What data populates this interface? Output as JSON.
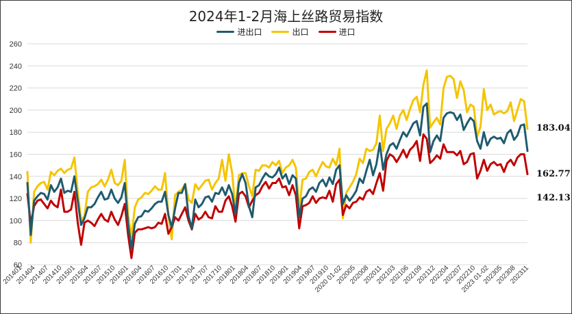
{
  "colors": {
    "jinchu": "#1f5b6e",
    "chu": "#f5c400",
    "jin": "#c00000"
  },
  "chart_data": {
    "type": "line",
    "title": "2024年1-2月海上丝路贸易指数",
    "ylim": [
      60,
      260
    ],
    "yticks": [
      60,
      80,
      100,
      120,
      140,
      160,
      180,
      200,
      220,
      240,
      260
    ],
    "grid": true,
    "legend_position": "top",
    "x_tick_labels": [
      "201401",
      "201404",
      "201407",
      "201410",
      "201501",
      "201504",
      "201507",
      "201510",
      "201601",
      "201604",
      "201607",
      "201610",
      "201701",
      "201704",
      "201707",
      "201710",
      "201801",
      "201804",
      "201807",
      "201810",
      "201901",
      "201904",
      "201907",
      "201910",
      "2020 01-02",
      "202005",
      "202008",
      "202011",
      "202103",
      "202106",
      "202109",
      "202112",
      "202204",
      "202207",
      "202210",
      "2023 01-02",
      "202305",
      "202308",
      "202311"
    ],
    "end_labels": [
      "183.04",
      "162.77",
      "142.13"
    ],
    "series": [
      {
        "name": "进出口",
        "values": [
          134,
          87,
          118,
          122,
          125,
          124,
          119,
          132,
          126,
          130,
          138,
          125,
          127,
          126,
          140,
          118,
          96,
          102,
          112,
          112,
          115,
          121,
          126,
          119,
          120,
          128,
          120,
          116,
          121,
          134,
          97,
          75,
          97,
          103,
          104,
          109,
          108,
          111,
          115,
          117,
          117,
          126,
          105,
          94,
          111,
          125,
          125,
          133,
          104,
          93,
          119,
          112,
          115,
          121,
          122,
          117,
          125,
          124,
          130,
          123,
          132,
          124,
          106,
          134,
          142,
          134,
          113,
          103,
          130,
          132,
          138,
          143,
          140,
          139,
          142,
          148,
          138,
          142,
          133,
          141,
          138,
          103,
          120,
          122,
          128,
          130,
          126,
          134,
          137,
          131,
          139,
          133,
          146,
          150,
          115,
          123,
          118,
          122,
          127,
          138,
          134,
          145,
          155,
          141,
          151,
          170,
          146,
          160,
          168,
          170,
          165,
          173,
          180,
          176,
          182,
          188,
          190,
          177,
          203,
          206,
          162,
          172,
          177,
          172,
          193,
          197,
          198,
          197,
          191,
          196,
          182,
          188,
          193,
          190,
          172,
          165,
          180,
          168,
          174,
          176,
          174,
          175,
          170,
          179,
          182,
          173,
          177,
          186,
          187,
          163
        ],
        "endpoint_label": "162.77"
      },
      {
        "name": "出口",
        "values": [
          144,
          80,
          126,
          131,
          134,
          135,
          128,
          144,
          141,
          145,
          147,
          143,
          146,
          147,
          157,
          126,
          100,
          104,
          126,
          130,
          131,
          133,
          137,
          131,
          137,
          146,
          134,
          132,
          136,
          155,
          105,
          85,
          112,
          119,
          121,
          125,
          124,
          127,
          131,
          128,
          128,
          143,
          105,
          83,
          123,
          126,
          128,
          133,
          119,
          116,
          133,
          128,
          132,
          136,
          137,
          128,
          134,
          138,
          155,
          136,
          160,
          143,
          110,
          141,
          143,
          143,
          131,
          122,
          146,
          145,
          150,
          150,
          148,
          153,
          150,
          154,
          143,
          148,
          150,
          155,
          148,
          110,
          137,
          138,
          144,
          146,
          140,
          147,
          153,
          149,
          148,
          156,
          150,
          165,
          102,
          125,
          130,
          135,
          142,
          156,
          152,
          165,
          163,
          164,
          170,
          195,
          163,
          183,
          188,
          195,
          183,
          195,
          200,
          191,
          201,
          209,
          212,
          198,
          223,
          236,
          184,
          189,
          193,
          187,
          220,
          230,
          231,
          228,
          211,
          226,
          218,
          198,
          205,
          203,
          176,
          185,
          219,
          200,
          205,
          196,
          198,
          199,
          197,
          199,
          207,
          190,
          200,
          210,
          208,
          183
        ],
        "endpoint_label": "183.04"
      },
      {
        "name": "进口",
        "values": [
          124,
          97,
          113,
          118,
          119,
          115,
          111,
          118,
          114,
          112,
          128,
          108,
          108,
          110,
          126,
          98,
          78,
          98,
          100,
          98,
          95,
          101,
          106,
          101,
          99,
          108,
          101,
          96,
          104,
          115,
          87,
          66,
          89,
          92,
          92,
          93,
          94,
          93,
          94,
          98,
          97,
          106,
          88,
          94,
          103,
          100,
          106,
          112,
          100,
          92,
          106,
          101,
          103,
          108,
          103,
          102,
          113,
          108,
          108,
          118,
          122,
          113,
          99,
          124,
          126,
          122,
          112,
          118,
          123,
          125,
          131,
          135,
          129,
          134,
          134,
          138,
          130,
          131,
          123,
          132,
          123,
          93,
          113,
          114,
          116,
          122,
          116,
          120,
          121,
          120,
          127,
          117,
          133,
          137,
          105,
          114,
          111,
          116,
          117,
          121,
          119,
          126,
          128,
          124,
          134,
          143,
          127,
          154,
          160,
          158,
          153,
          158,
          164,
          157,
          164,
          167,
          172,
          154,
          178,
          174,
          152,
          155,
          159,
          156,
          169,
          162,
          162,
          162,
          159,
          163,
          151,
          153,
          160,
          161,
          138,
          145,
          155,
          145,
          151,
          153,
          150,
          151,
          144,
          152,
          155,
          150,
          157,
          160,
          160,
          142
        ],
        "endpoint_label": "142.13"
      }
    ]
  }
}
